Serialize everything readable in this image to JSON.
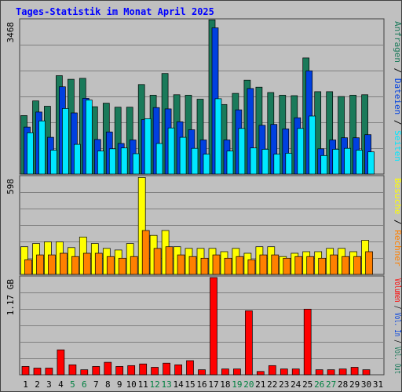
{
  "chart_data": {
    "type": "bar",
    "title": "Tages-Statistik im Monat April 2025",
    "days": [
      "1",
      "2",
      "3",
      "4",
      "5",
      "6",
      "7",
      "8",
      "9",
      "10",
      "11",
      "12",
      "13",
      "14",
      "15",
      "16",
      "17",
      "18",
      "19",
      "20",
      "21",
      "22",
      "23",
      "24",
      "25",
      "26",
      "27",
      "28",
      "29",
      "30",
      "31"
    ],
    "weekend_days": [
      "5",
      "6",
      "12",
      "13",
      "19",
      "20",
      "26",
      "27"
    ],
    "colors": {
      "title": "#0000ff",
      "weekend_label": "#008040",
      "panel_bg": "#c0c0c0",
      "gridline": "#808080",
      "anfragen": "#1a7a5a",
      "dateien": "#0040e0",
      "seiten": "#00e8ff",
      "besuche": "#ffff00",
      "rechner": "#ff8000",
      "volumen": "#ff0000"
    },
    "panels": [
      {
        "name": "top",
        "ymax": 3468,
        "ymax_label": "3468",
        "series": [
          {
            "key": "anfragen",
            "values": [
              1320,
              1650,
              1530,
              2220,
              2140,
              2160,
              1520,
              1600,
              1510,
              1510,
              2020,
              1780,
              2270,
              1790,
              1780,
              1690,
              3480,
              1570,
              1820,
              2120,
              1960,
              1840,
              1780,
              1770,
              2620,
              1860,
              1860,
              1750,
              1780,
              1790
            ]
          },
          {
            "key": "dateien",
            "values": [
              1060,
              1400,
              830,
              1970,
              1380,
              1710,
              780,
              950,
              690,
              770,
              1230,
              1500,
              1470,
              1180,
              1000,
              770,
              3300,
              770,
              1450,
              1930,
              1100,
              1120,
              1020,
              1270,
              2330,
              570,
              770,
              820,
              820,
              890
            ]
          },
          {
            "key": "seiten",
            "values": [
              930,
              1200,
              540,
              1480,
              670,
              1670,
              520,
              570,
              590,
              460,
              1250,
              690,
              1040,
              830,
              580,
              450,
              1700,
              520,
              1030,
              590,
              560,
              450,
              470,
              1030,
              1310,
              420,
              560,
              580,
              540,
              500
            ]
          }
        ],
        "legend": [
          {
            "text": "Anfragen",
            "key": "anfragen"
          },
          {
            "text": "Dateien",
            "key": "dateien"
          },
          {
            "text": "Seiten",
            "key": "seiten"
          }
        ]
      },
      {
        "name": "middle",
        "ymax": 598,
        "ymax_label": "598",
        "series": [
          {
            "key": "besuche",
            "values": [
              170,
              190,
              200,
              200,
              165,
              230,
              190,
              160,
              150,
              190,
              596,
              240,
              270,
              170,
              160,
              160,
              160,
              140,
              160,
              130,
              170,
              170,
              110,
              130,
              140,
              140,
              160,
              160,
              140,
              210
            ]
          },
          {
            "key": "rechner",
            "values": [
              90,
              120,
              120,
              130,
              110,
              130,
              130,
              110,
              100,
              110,
              270,
              160,
              170,
              120,
              110,
              100,
              120,
              100,
              110,
              90,
              120,
              120,
              100,
              110,
              110,
              100,
              120,
              110,
              110,
              140
            ]
          }
        ],
        "legend": [
          {
            "text": "Besuche",
            "key": "besuche"
          },
          {
            "text": "Rechner",
            "key": "rechner"
          }
        ]
      },
      {
        "name": "bottom",
        "ymax": 1.17,
        "ymax_label": "1.17 GB",
        "series": [
          {
            "key": "volumen",
            "values": [
              0.1,
              0.08,
              0.08,
              0.3,
              0.12,
              0.06,
              0.1,
              0.15,
              0.1,
              0.11,
              0.13,
              0.09,
              0.14,
              0.12,
              0.17,
              0.06,
              1.17,
              0.07,
              0.07,
              0.77,
              0.04,
              0.11,
              0.07,
              0.07,
              0.79,
              0.06,
              0.06,
              0.07,
              0.09,
              0.06
            ]
          }
        ],
        "legend": [
          {
            "text": "Volumen",
            "key": "volumen"
          },
          {
            "text": "Vol. In",
            "key": "dateien"
          },
          {
            "text": "Vol. Out",
            "key": "anfragen"
          }
        ]
      }
    ]
  }
}
